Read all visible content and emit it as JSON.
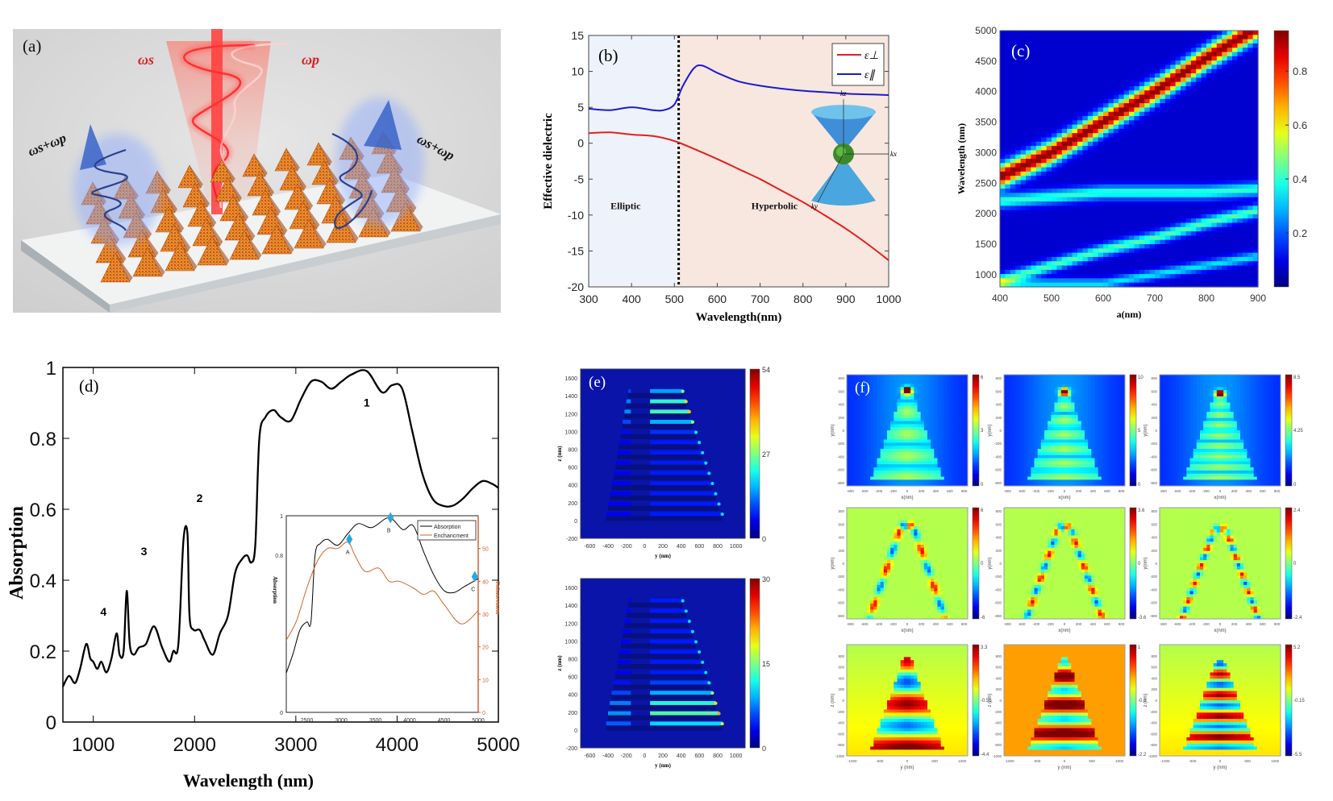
{
  "figure": {
    "panel_labels": {
      "a": "(a)",
      "b": "(b)",
      "c": "(c)",
      "d": "(d)",
      "e": "(e)",
      "f": "(f)"
    }
  },
  "panel_a": {
    "labels": {
      "omega_s": "ωs",
      "omega_p": "ωp",
      "sum_left": "ωs+ωp",
      "sum_right": "ωs+ωp"
    },
    "colors": {
      "background": "#d6d6d6",
      "substrate": "#eef0f0",
      "pyramid": "#e8862a",
      "pump": "#ff2a2a",
      "emission": "#3d6fd1"
    }
  },
  "chart_data": [
    {
      "id": "b",
      "type": "line",
      "title": "",
      "xlabel": "Wavelength(nm)",
      "ylabel": "Effective dielectric",
      "xlim": [
        300,
        1000
      ],
      "ylim": [
        -20,
        15
      ],
      "xticks": [
        300,
        400,
        500,
        600,
        700,
        800,
        900,
        1000
      ],
      "yticks": [
        -20,
        -15,
        -10,
        -5,
        0,
        5,
        10,
        15
      ],
      "regions": [
        {
          "name": "Elliptic",
          "from": 300,
          "to": 510,
          "color": "#eef2fa"
        },
        {
          "name": "Hyperbolic",
          "from": 510,
          "to": 1000,
          "color": "#f7e7df"
        }
      ],
      "boundary_x": 510,
      "legend": "top-right",
      "series": [
        {
          "name": "ε⊥",
          "color": "#e02020",
          "x": [
            300,
            350,
            400,
            450,
            500,
            550,
            600,
            650,
            700,
            750,
            800,
            850,
            900,
            950,
            1000
          ],
          "y": [
            1.4,
            1.5,
            1.2,
            1.0,
            0.3,
            -0.9,
            -2.2,
            -3.6,
            -5.0,
            -6.6,
            -8.2,
            -10.0,
            -11.9,
            -14.0,
            -16.3
          ]
        },
        {
          "name": "ε∥",
          "color": "#1a1ad0",
          "x": [
            300,
            350,
            400,
            450,
            475,
            500,
            520,
            545,
            565,
            600,
            650,
            700,
            750,
            800,
            850,
            900,
            950,
            1000
          ],
          "y": [
            4.8,
            4.6,
            5.0,
            4.6,
            4.6,
            5.4,
            8.0,
            10.4,
            10.8,
            9.8,
            8.6,
            8.0,
            7.6,
            7.3,
            7.1,
            6.9,
            6.8,
            6.7
          ]
        }
      ],
      "inset_axes": [
        "kz",
        "kx",
        "ky"
      ]
    },
    {
      "id": "c",
      "type": "heatmap",
      "xlabel": "a(nm)",
      "ylabel": "Wavelength (nm)",
      "xlim": [
        400,
        900
      ],
      "ylim": [
        800,
        5000
      ],
      "xticks": [
        400,
        500,
        600,
        700,
        800,
        900
      ],
      "yticks": [
        1000,
        1500,
        2000,
        2500,
        3000,
        3500,
        4000,
        4500,
        5000
      ],
      "colorbar": {
        "range": [
          0,
          0.95
        ],
        "ticks": [
          0.2,
          0.4,
          0.6,
          0.8
        ],
        "colormap": "jet"
      },
      "bands": [
        {
          "name": "main resonance",
          "peak": 0.95,
          "width": 180,
          "points": [
            [
              400,
              2600
            ],
            [
              500,
              3000
            ],
            [
              600,
              3500
            ],
            [
              700,
              4000
            ],
            [
              800,
              4550
            ],
            [
              900,
              5050
            ]
          ]
        },
        {
          "name": "second mode",
          "peak": 0.35,
          "width": 110,
          "points": [
            [
              400,
              2200
            ],
            [
              600,
              2350
            ],
            [
              800,
              2350
            ],
            [
              900,
              2400
            ]
          ]
        },
        {
          "name": "third mode",
          "peak": 0.38,
          "width": 100,
          "points": [
            [
              400,
              900
            ],
            [
              500,
              1150
            ],
            [
              600,
              1400
            ],
            [
              700,
              1600
            ],
            [
              800,
              1850
            ],
            [
              900,
              2050
            ]
          ]
        },
        {
          "name": "fourth mode",
          "peak": 0.28,
          "width": 80,
          "points": [
            [
              600,
              850
            ],
            [
              700,
              1000
            ],
            [
              800,
              1150
            ],
            [
              900,
              1300
            ]
          ]
        }
      ]
    },
    {
      "id": "d",
      "type": "line",
      "xlabel": "Wavelength (nm)",
      "ylabel": "Absorption",
      "xlim": [
        700,
        5000
      ],
      "ylim": [
        0,
        1
      ],
      "xticks": [
        1000,
        2000,
        3000,
        4000,
        5000
      ],
      "yticks": [
        0,
        0.2,
        0.4,
        0.6,
        0.8,
        1
      ],
      "annotations": [
        {
          "text": "1",
          "x": 3700,
          "y": 0.89
        },
        {
          "text": "2",
          "x": 2050,
          "y": 0.62
        },
        {
          "text": "3",
          "x": 1500,
          "y": 0.47
        },
        {
          "text": "4",
          "x": 1100,
          "y": 0.3
        }
      ],
      "series": [
        {
          "name": "Absorption",
          "color": "#000000",
          "x": [
            700,
            760,
            820,
            870,
            930,
            970,
            1000,
            1040,
            1080,
            1130,
            1180,
            1230,
            1260,
            1300,
            1330,
            1360,
            1400,
            1450,
            1520,
            1600,
            1680,
            1750,
            1790,
            1840,
            1890,
            1930,
            1950,
            1990,
            2050,
            2100,
            2180,
            2250,
            2330,
            2400,
            2470,
            2520,
            2560,
            2600,
            2640,
            2700,
            2780,
            2850,
            2950,
            3050,
            3150,
            3250,
            3350,
            3450,
            3550,
            3700,
            3850,
            3950,
            4050,
            4150,
            4250,
            4350,
            4450,
            4550,
            4650,
            4750,
            4850,
            4950,
            5000
          ],
          "y": [
            0.1,
            0.13,
            0.11,
            0.15,
            0.22,
            0.18,
            0.17,
            0.15,
            0.17,
            0.14,
            0.18,
            0.25,
            0.19,
            0.2,
            0.37,
            0.22,
            0.19,
            0.21,
            0.22,
            0.27,
            0.21,
            0.17,
            0.2,
            0.22,
            0.51,
            0.53,
            0.3,
            0.26,
            0.26,
            0.23,
            0.19,
            0.25,
            0.3,
            0.42,
            0.46,
            0.47,
            0.45,
            0.5,
            0.8,
            0.86,
            0.88,
            0.86,
            0.85,
            0.91,
            0.96,
            0.96,
            0.94,
            0.96,
            0.98,
            0.99,
            0.93,
            0.95,
            0.94,
            0.82,
            0.7,
            0.63,
            0.61,
            0.61,
            0.63,
            0.66,
            0.68,
            0.67,
            0.66
          ]
        }
      ],
      "inset": {
        "xlim": [
          2200,
          5000
        ],
        "xticks": [
          2500,
          3000,
          3500,
          4000,
          4500,
          5000
        ],
        "ylabel_left": "Absorption",
        "ylabel_right": "Enhancement",
        "yticks_left": [
          0,
          0.8,
          1
        ],
        "yticks_right": [
          0,
          10,
          20,
          30,
          40,
          50
        ],
        "legend": [
          "Absorption",
          "Enchancment"
        ],
        "markers": [
          {
            "label": "A",
            "x": 3120,
            "y": 0.88
          },
          {
            "label": "B",
            "x": 3720,
            "y": 0.99
          },
          {
            "label": "C",
            "x": 4950,
            "y": 0.69
          }
        ],
        "series": [
          {
            "name": "Absorption",
            "color": "#000000",
            "x": [
              2200,
              2300,
              2400,
              2500,
              2560,
              2620,
              2700,
              2800,
              2950,
              3100,
              3250,
              3450,
              3700,
              3900,
              4050,
              4200,
              4350,
              4500,
              4650,
              4800,
              5000
            ],
            "y": [
              0.2,
              0.3,
              0.42,
              0.46,
              0.46,
              0.8,
              0.86,
              0.88,
              0.85,
              0.91,
              0.96,
              0.94,
              0.99,
              0.93,
              0.95,
              0.82,
              0.7,
              0.62,
              0.61,
              0.64,
              0.68
            ]
          },
          {
            "name": "Enchancment",
            "color": "#d2642a",
            "x": [
              2200,
              2350,
              2500,
              2650,
              2800,
              2950,
              3100,
              3200,
              3350,
              3550,
              3700,
              3850,
              4050,
              4200,
              4350,
              4500,
              4750,
              5000
            ],
            "y": [
              22,
              28,
              38,
              46,
              50,
              50,
              52,
              48,
              43,
              44,
              40,
              40,
              38,
              36,
              37,
              33,
              27,
              31
            ]
          }
        ]
      }
    },
    {
      "id": "e",
      "type": "heatmap",
      "plots": [
        {
          "xlabel": "y (nm)",
          "ylabel": "z (nm)",
          "xticks": [
            -600,
            -400,
            -200,
            0,
            200,
            400,
            600,
            800,
            1000
          ],
          "yticks": [
            -200,
            0,
            200,
            400,
            600,
            800,
            1000,
            1200,
            1400,
            1600
          ],
          "colorbar": {
            "range": [
              0,
              54
            ],
            "ticks": [
              0,
              27,
              54
            ]
          },
          "hot_layers": "top (z≈1100–1350)"
        },
        {
          "xlabel": "y (nm)",
          "ylabel": "z (nm)",
          "xticks": [
            -600,
            -400,
            -200,
            0,
            200,
            400,
            600,
            800,
            1000
          ],
          "yticks": [
            -200,
            0,
            200,
            400,
            600,
            800,
            1000,
            1200,
            1400,
            1600
          ],
          "colorbar": {
            "range": [
              0,
              30
            ],
            "ticks": [
              0,
              15,
              30
            ]
          },
          "hot_layers": "bottom (z≈0–400)"
        }
      ]
    },
    {
      "id": "f",
      "type": "heatmap",
      "grid": [
        [
          {
            "xlabel": "x(nm)",
            "ylabel": "y(nm)",
            "colorbar": {
              "min": "0",
              "mid": "3",
              "max": "6"
            },
            "style": "mag"
          },
          {
            "xlabel": "x(nm)",
            "ylabel": "y(nm)",
            "colorbar": {
              "min": "0",
              "mid": "5",
              "max": "10"
            },
            "style": "mag"
          },
          {
            "xlabel": "x(nm)",
            "ylabel": "y(nm)",
            "colorbar": {
              "min": "0",
              "mid": "4.25",
              "max": "8.5"
            },
            "style": "mag"
          }
        ],
        [
          {
            "xlabel": "x(nm)",
            "ylabel": "y(nm)",
            "colorbar": {
              "min": "-6",
              "mid": "0",
              "max": "6"
            },
            "style": "dip"
          },
          {
            "xlabel": "x(nm)",
            "ylabel": "y(nm)",
            "colorbar": {
              "min": "-3.6",
              "mid": "0",
              "max": "3.6"
            },
            "style": "dip"
          },
          {
            "xlabel": "x(nm)",
            "ylabel": "y(nm)",
            "colorbar": {
              "min": "-2.4",
              "mid": "0",
              "max": "2.4"
            },
            "style": "dip"
          }
        ],
        [
          {
            "xlabel": "y (nm)",
            "ylabel": "z (nm)",
            "colorbar": {
              "min": "-4.4",
              "mid": "-0.55",
              "max": "3.3"
            },
            "style": "lobe1"
          },
          {
            "xlabel": "y (nm)",
            "ylabel": "z (nm)",
            "colorbar": {
              "min": "-2.2",
              "mid": "-0.6",
              "max": "1"
            },
            "style": "lobe2"
          },
          {
            "xlabel": "y (nm)",
            "ylabel": "z (nm)",
            "colorbar": {
              "min": "-5.5",
              "mid": "-0.15",
              "max": "5.2"
            },
            "style": "lobe3"
          }
        ]
      ],
      "xticks_xy": [
        -800,
        -600,
        -400,
        -200,
        0,
        200,
        400,
        600,
        800
      ],
      "yticks_xy": [
        -800,
        -600,
        -400,
        -200,
        0,
        200,
        400,
        600,
        800
      ],
      "xticks_yz": [
        -1000,
        -500,
        0,
        500,
        1000
      ],
      "yticks_yz": [
        -1000,
        -800,
        -600,
        -400,
        -200,
        0,
        200,
        400,
        600,
        800
      ]
    }
  ]
}
